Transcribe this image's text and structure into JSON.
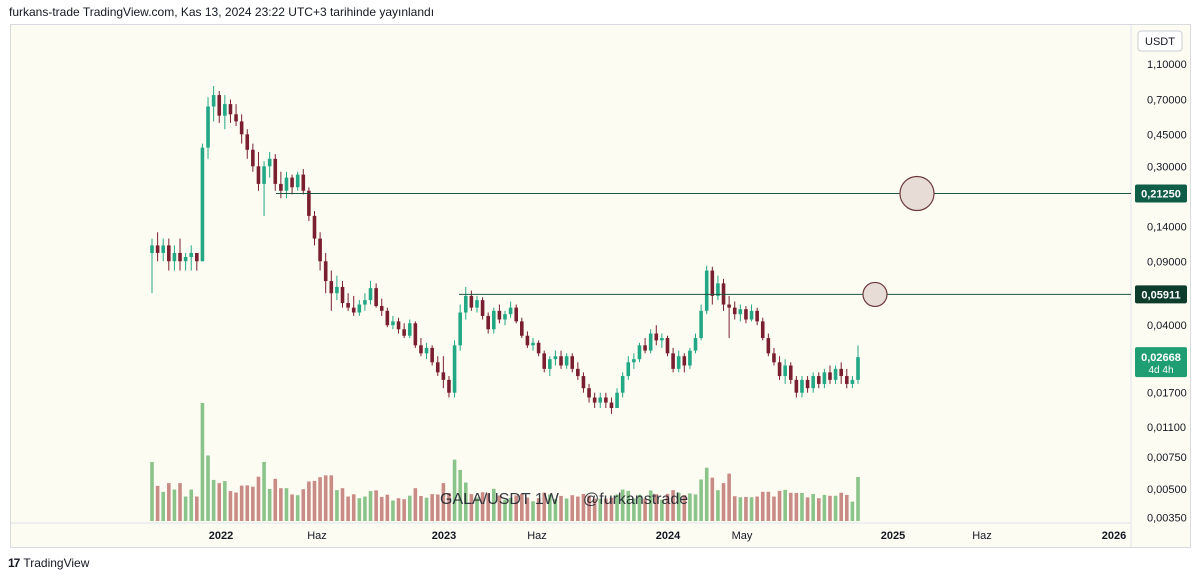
{
  "header": {
    "publish_text": "furkans-trade TradingView.com, Kas 13, 2024 23:22 UTC+3 tarihinde yayınlandı"
  },
  "footer": {
    "brand": "TradingView",
    "logo_glyph": "17"
  },
  "colors": {
    "background": "#fdfcf3",
    "up": "#22a884",
    "down": "#7a1f2f",
    "volume_up": "#8bc48a",
    "volume_down": "#c98b86",
    "hline": "#1e5546",
    "tag_low": "#0d3b2c",
    "tag_high": "#0f5c47",
    "tag_last": "#1f9e74"
  },
  "chart_data": {
    "type": "candlestick",
    "symbol_label": "GALA/USDT 1W",
    "author": "@furkanstrade",
    "currency": "USDT",
    "y_scale": "log",
    "ylim": [
      0.0033,
      1.14
    ],
    "y_ticks": [
      "1,10000",
      "0,70000",
      "0,45000",
      "0,30000",
      "0,14000",
      "0,09000",
      "0,04000",
      "0,01700",
      "0,01100",
      "0,00750",
      "0,00500",
      "0,00350"
    ],
    "y_tick_values": [
      1.1,
      0.7,
      0.45,
      0.3,
      0.14,
      0.09,
      0.04,
      0.017,
      0.011,
      0.0075,
      0.005,
      0.0035
    ],
    "x_ticks": [
      "2022",
      "Haz",
      "2023",
      "Haz",
      "2024",
      "May",
      "2025",
      "Haz",
      "2026"
    ],
    "horizontal_levels": [
      {
        "value": 0.2125,
        "label": "0,21250"
      },
      {
        "value": 0.05911,
        "label": "0,05911"
      }
    ],
    "last_price": {
      "value": 0.02668,
      "label": "0,02668",
      "countdown": "4d 4h"
    },
    "circle_marks": [
      0.2125,
      0.05911
    ],
    "grid": false,
    "ohlc_weekly_approx": [
      [
        0.1,
        0.12,
        0.06,
        0.11
      ],
      [
        0.11,
        0.13,
        0.09,
        0.1
      ],
      [
        0.1,
        0.12,
        0.09,
        0.11
      ],
      [
        0.11,
        0.12,
        0.08,
        0.09
      ],
      [
        0.09,
        0.11,
        0.08,
        0.1
      ],
      [
        0.1,
        0.12,
        0.08,
        0.09
      ],
      [
        0.09,
        0.1,
        0.08,
        0.095
      ],
      [
        0.095,
        0.11,
        0.08,
        0.1
      ],
      [
        0.1,
        0.1,
        0.08,
        0.09
      ],
      [
        0.09,
        0.4,
        0.09,
        0.38
      ],
      [
        0.38,
        0.72,
        0.33,
        0.64
      ],
      [
        0.64,
        0.83,
        0.53,
        0.74
      ],
      [
        0.74,
        0.78,
        0.52,
        0.57
      ],
      [
        0.57,
        0.74,
        0.48,
        0.66
      ],
      [
        0.66,
        0.7,
        0.52,
        0.58
      ],
      [
        0.58,
        0.66,
        0.5,
        0.53
      ],
      [
        0.53,
        0.58,
        0.4,
        0.45
      ],
      [
        0.45,
        0.48,
        0.33,
        0.37
      ],
      [
        0.37,
        0.4,
        0.28,
        0.3
      ],
      [
        0.3,
        0.36,
        0.22,
        0.24
      ],
      [
        0.24,
        0.32,
        0.16,
        0.3
      ],
      [
        0.3,
        0.36,
        0.26,
        0.33
      ],
      [
        0.33,
        0.35,
        0.22,
        0.24
      ],
      [
        0.24,
        0.28,
        0.2,
        0.22
      ],
      [
        0.22,
        0.28,
        0.2,
        0.26
      ],
      [
        0.26,
        0.27,
        0.21,
        0.23
      ],
      [
        0.23,
        0.28,
        0.22,
        0.27
      ],
      [
        0.27,
        0.29,
        0.21,
        0.22
      ],
      [
        0.22,
        0.23,
        0.15,
        0.16
      ],
      [
        0.16,
        0.17,
        0.11,
        0.12
      ],
      [
        0.12,
        0.13,
        0.08,
        0.09
      ],
      [
        0.09,
        0.1,
        0.06,
        0.07
      ],
      [
        0.07,
        0.08,
        0.048,
        0.06
      ],
      [
        0.06,
        0.075,
        0.055,
        0.065
      ],
      [
        0.065,
        0.07,
        0.05,
        0.053
      ],
      [
        0.053,
        0.06,
        0.048,
        0.05
      ],
      [
        0.05,
        0.058,
        0.045,
        0.047
      ],
      [
        0.047,
        0.055,
        0.045,
        0.052
      ],
      [
        0.052,
        0.06,
        0.048,
        0.055
      ],
      [
        0.055,
        0.07,
        0.052,
        0.064
      ],
      [
        0.064,
        0.068,
        0.05,
        0.051
      ],
      [
        0.051,
        0.056,
        0.045,
        0.048
      ],
      [
        0.048,
        0.05,
        0.039,
        0.04
      ],
      [
        0.04,
        0.045,
        0.038,
        0.042
      ],
      [
        0.042,
        0.044,
        0.036,
        0.038
      ],
      [
        0.038,
        0.041,
        0.034,
        0.035
      ],
      [
        0.035,
        0.043,
        0.034,
        0.041
      ],
      [
        0.041,
        0.042,
        0.03,
        0.031
      ],
      [
        0.031,
        0.034,
        0.027,
        0.028
      ],
      [
        0.028,
        0.032,
        0.026,
        0.03
      ],
      [
        0.03,
        0.031,
        0.024,
        0.025
      ],
      [
        0.025,
        0.027,
        0.021,
        0.022
      ],
      [
        0.022,
        0.027,
        0.018,
        0.02
      ],
      [
        0.02,
        0.021,
        0.016,
        0.017
      ],
      [
        0.017,
        0.033,
        0.016,
        0.031
      ],
      [
        0.031,
        0.052,
        0.029,
        0.047
      ],
      [
        0.047,
        0.065,
        0.043,
        0.058
      ],
      [
        0.058,
        0.062,
        0.048,
        0.05
      ],
      [
        0.05,
        0.058,
        0.047,
        0.055
      ],
      [
        0.055,
        0.057,
        0.043,
        0.045
      ],
      [
        0.045,
        0.047,
        0.036,
        0.038
      ],
      [
        0.038,
        0.05,
        0.036,
        0.048
      ],
      [
        0.048,
        0.052,
        0.041,
        0.043
      ],
      [
        0.043,
        0.048,
        0.04,
        0.046
      ],
      [
        0.046,
        0.054,
        0.044,
        0.05
      ],
      [
        0.05,
        0.052,
        0.041,
        0.042
      ],
      [
        0.042,
        0.044,
        0.034,
        0.035
      ],
      [
        0.035,
        0.037,
        0.03,
        0.031
      ],
      [
        0.031,
        0.034,
        0.029,
        0.032
      ],
      [
        0.032,
        0.033,
        0.027,
        0.028
      ],
      [
        0.028,
        0.029,
        0.022,
        0.023
      ],
      [
        0.023,
        0.027,
        0.021,
        0.026
      ],
      [
        0.026,
        0.029,
        0.024,
        0.027
      ],
      [
        0.027,
        0.029,
        0.023,
        0.024
      ],
      [
        0.024,
        0.028,
        0.023,
        0.027
      ],
      [
        0.027,
        0.028,
        0.022,
        0.023
      ],
      [
        0.023,
        0.025,
        0.02,
        0.021
      ],
      [
        0.021,
        0.022,
        0.017,
        0.018
      ],
      [
        0.018,
        0.019,
        0.015,
        0.016
      ],
      [
        0.016,
        0.017,
        0.014,
        0.015
      ],
      [
        0.015,
        0.017,
        0.014,
        0.016
      ],
      [
        0.016,
        0.017,
        0.014,
        0.015
      ],
      [
        0.015,
        0.016,
        0.013,
        0.014
      ],
      [
        0.014,
        0.018,
        0.014,
        0.017
      ],
      [
        0.017,
        0.022,
        0.016,
        0.021
      ],
      [
        0.021,
        0.027,
        0.02,
        0.025
      ],
      [
        0.025,
        0.028,
        0.023,
        0.026
      ],
      [
        0.026,
        0.032,
        0.025,
        0.031
      ],
      [
        0.031,
        0.034,
        0.028,
        0.029
      ],
      [
        0.029,
        0.038,
        0.028,
        0.036
      ],
      [
        0.036,
        0.04,
        0.031,
        0.033
      ],
      [
        0.033,
        0.036,
        0.03,
        0.034
      ],
      [
        0.034,
        0.035,
        0.027,
        0.028
      ],
      [
        0.028,
        0.03,
        0.022,
        0.023
      ],
      [
        0.023,
        0.029,
        0.022,
        0.027
      ],
      [
        0.027,
        0.028,
        0.022,
        0.024
      ],
      [
        0.024,
        0.03,
        0.023,
        0.029
      ],
      [
        0.029,
        0.036,
        0.028,
        0.034
      ],
      [
        0.034,
        0.052,
        0.033,
        0.048
      ],
      [
        0.048,
        0.085,
        0.046,
        0.08
      ],
      [
        0.08,
        0.084,
        0.052,
        0.058
      ],
      [
        0.058,
        0.075,
        0.055,
        0.068
      ],
      [
        0.068,
        0.072,
        0.048,
        0.052
      ],
      [
        0.052,
        0.058,
        0.034,
        0.05
      ],
      [
        0.05,
        0.054,
        0.043,
        0.046
      ],
      [
        0.046,
        0.052,
        0.042,
        0.049
      ],
      [
        0.049,
        0.051,
        0.041,
        0.043
      ],
      [
        0.043,
        0.052,
        0.042,
        0.048
      ],
      [
        0.048,
        0.05,
        0.04,
        0.042
      ],
      [
        0.042,
        0.044,
        0.033,
        0.034
      ],
      [
        0.034,
        0.036,
        0.027,
        0.028
      ],
      [
        0.028,
        0.03,
        0.024,
        0.025
      ],
      [
        0.025,
        0.027,
        0.02,
        0.021
      ],
      [
        0.021,
        0.026,
        0.019,
        0.024
      ],
      [
        0.024,
        0.025,
        0.019,
        0.02
      ],
      [
        0.02,
        0.021,
        0.016,
        0.017
      ],
      [
        0.017,
        0.021,
        0.016,
        0.02
      ],
      [
        0.02,
        0.021,
        0.017,
        0.018
      ],
      [
        0.018,
        0.022,
        0.017,
        0.021
      ],
      [
        0.021,
        0.022,
        0.018,
        0.019
      ],
      [
        0.019,
        0.023,
        0.018,
        0.022
      ],
      [
        0.022,
        0.024,
        0.019,
        0.02
      ],
      [
        0.02,
        0.024,
        0.019,
        0.023
      ],
      [
        0.023,
        0.025,
        0.019,
        0.021
      ],
      [
        0.021,
        0.023,
        0.018,
        0.019
      ],
      [
        0.019,
        0.021,
        0.018,
        0.02
      ],
      [
        0.02,
        0.031,
        0.019,
        0.02668
      ]
    ]
  }
}
